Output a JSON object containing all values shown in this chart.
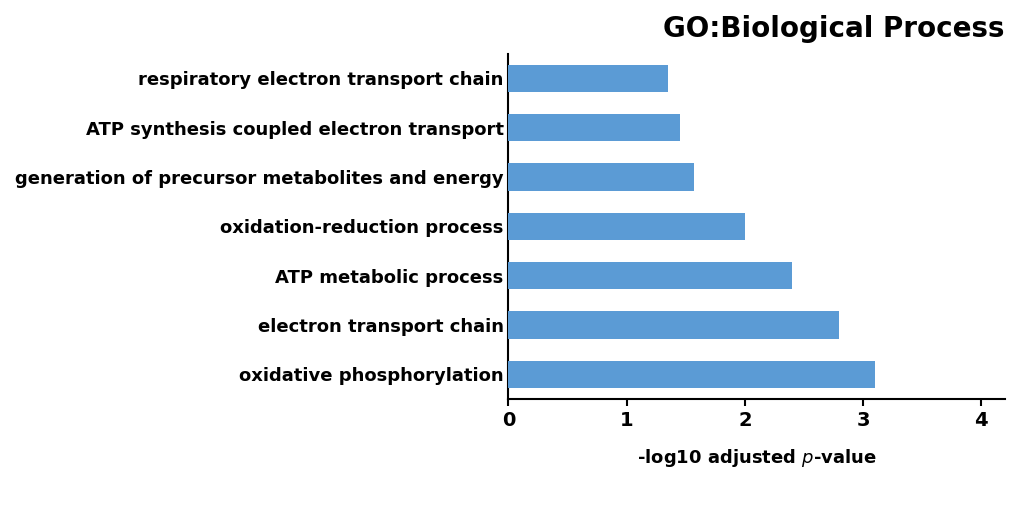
{
  "title": "GO:Biological Process",
  "categories": [
    "oxidative phosphorylation",
    "electron transport chain",
    "ATP metabolic process",
    "oxidation-reduction process",
    "generation of precursor metabolites and energy",
    "ATP synthesis coupled electron transport",
    "respiratory electron transport chain"
  ],
  "values": [
    3.1,
    2.8,
    2.4,
    2.0,
    1.57,
    1.45,
    1.35
  ],
  "bar_color": "#5B9BD5",
  "xlim": [
    0,
    4.2
  ],
  "xticks": [
    0,
    1,
    2,
    3,
    4
  ],
  "xtick_labels": [
    "0",
    "1",
    "2",
    "3",
    "4"
  ],
  "title_fontsize": 20,
  "label_fontsize": 13,
  "tick_fontsize": 14,
  "xlabel_fontsize": 13,
  "bar_height": 0.55,
  "background_color": "#ffffff"
}
